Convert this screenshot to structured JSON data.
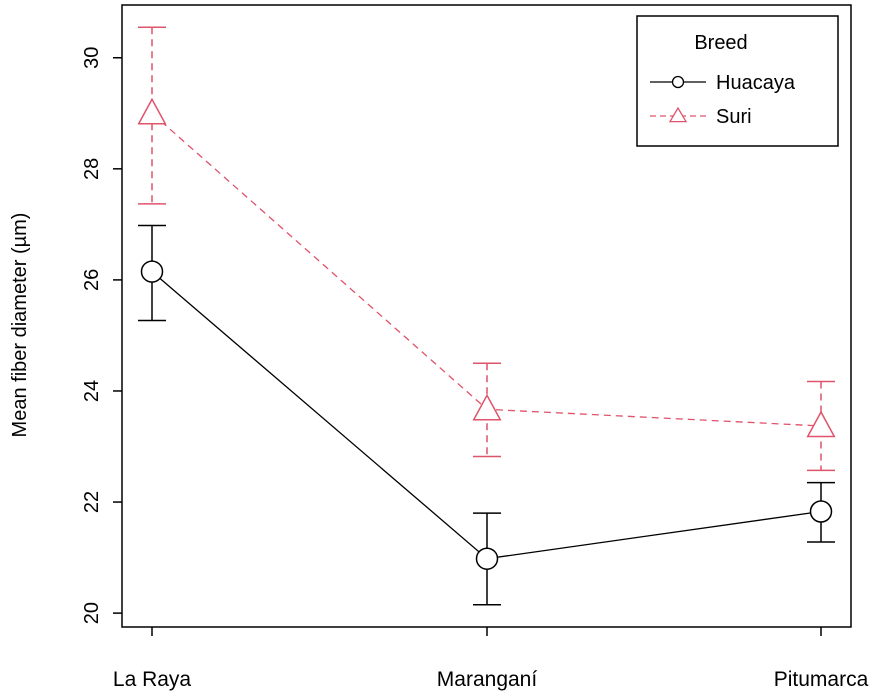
{
  "chart_data": {
    "type": "line",
    "title": "",
    "xlabel": "",
    "ylabel": "Mean fiber diameter (µm)",
    "categories": [
      "La Raya",
      "Maranganí",
      "Pitumarca"
    ],
    "ylim": [
      19.75,
      30.95
    ],
    "yticks": [
      20,
      22,
      24,
      26,
      28,
      30
    ],
    "grid": false,
    "legend": {
      "title": "Breed",
      "position": "top-right"
    },
    "series": [
      {
        "name": "Huacaya",
        "color": "#000000",
        "dash": "solid",
        "marker": "circle",
        "values": [
          26.15,
          20.98,
          21.83
        ],
        "lower": [
          25.27,
          20.15,
          21.28
        ],
        "upper": [
          26.98,
          21.8,
          22.35
        ]
      },
      {
        "name": "Suri",
        "color": "#df536b",
        "dash": "dashed",
        "marker": "triangle",
        "values": [
          29.0,
          23.67,
          23.37
        ],
        "lower": [
          27.37,
          22.82,
          22.57
        ],
        "upper": [
          30.55,
          24.5,
          24.17
        ]
      }
    ]
  }
}
